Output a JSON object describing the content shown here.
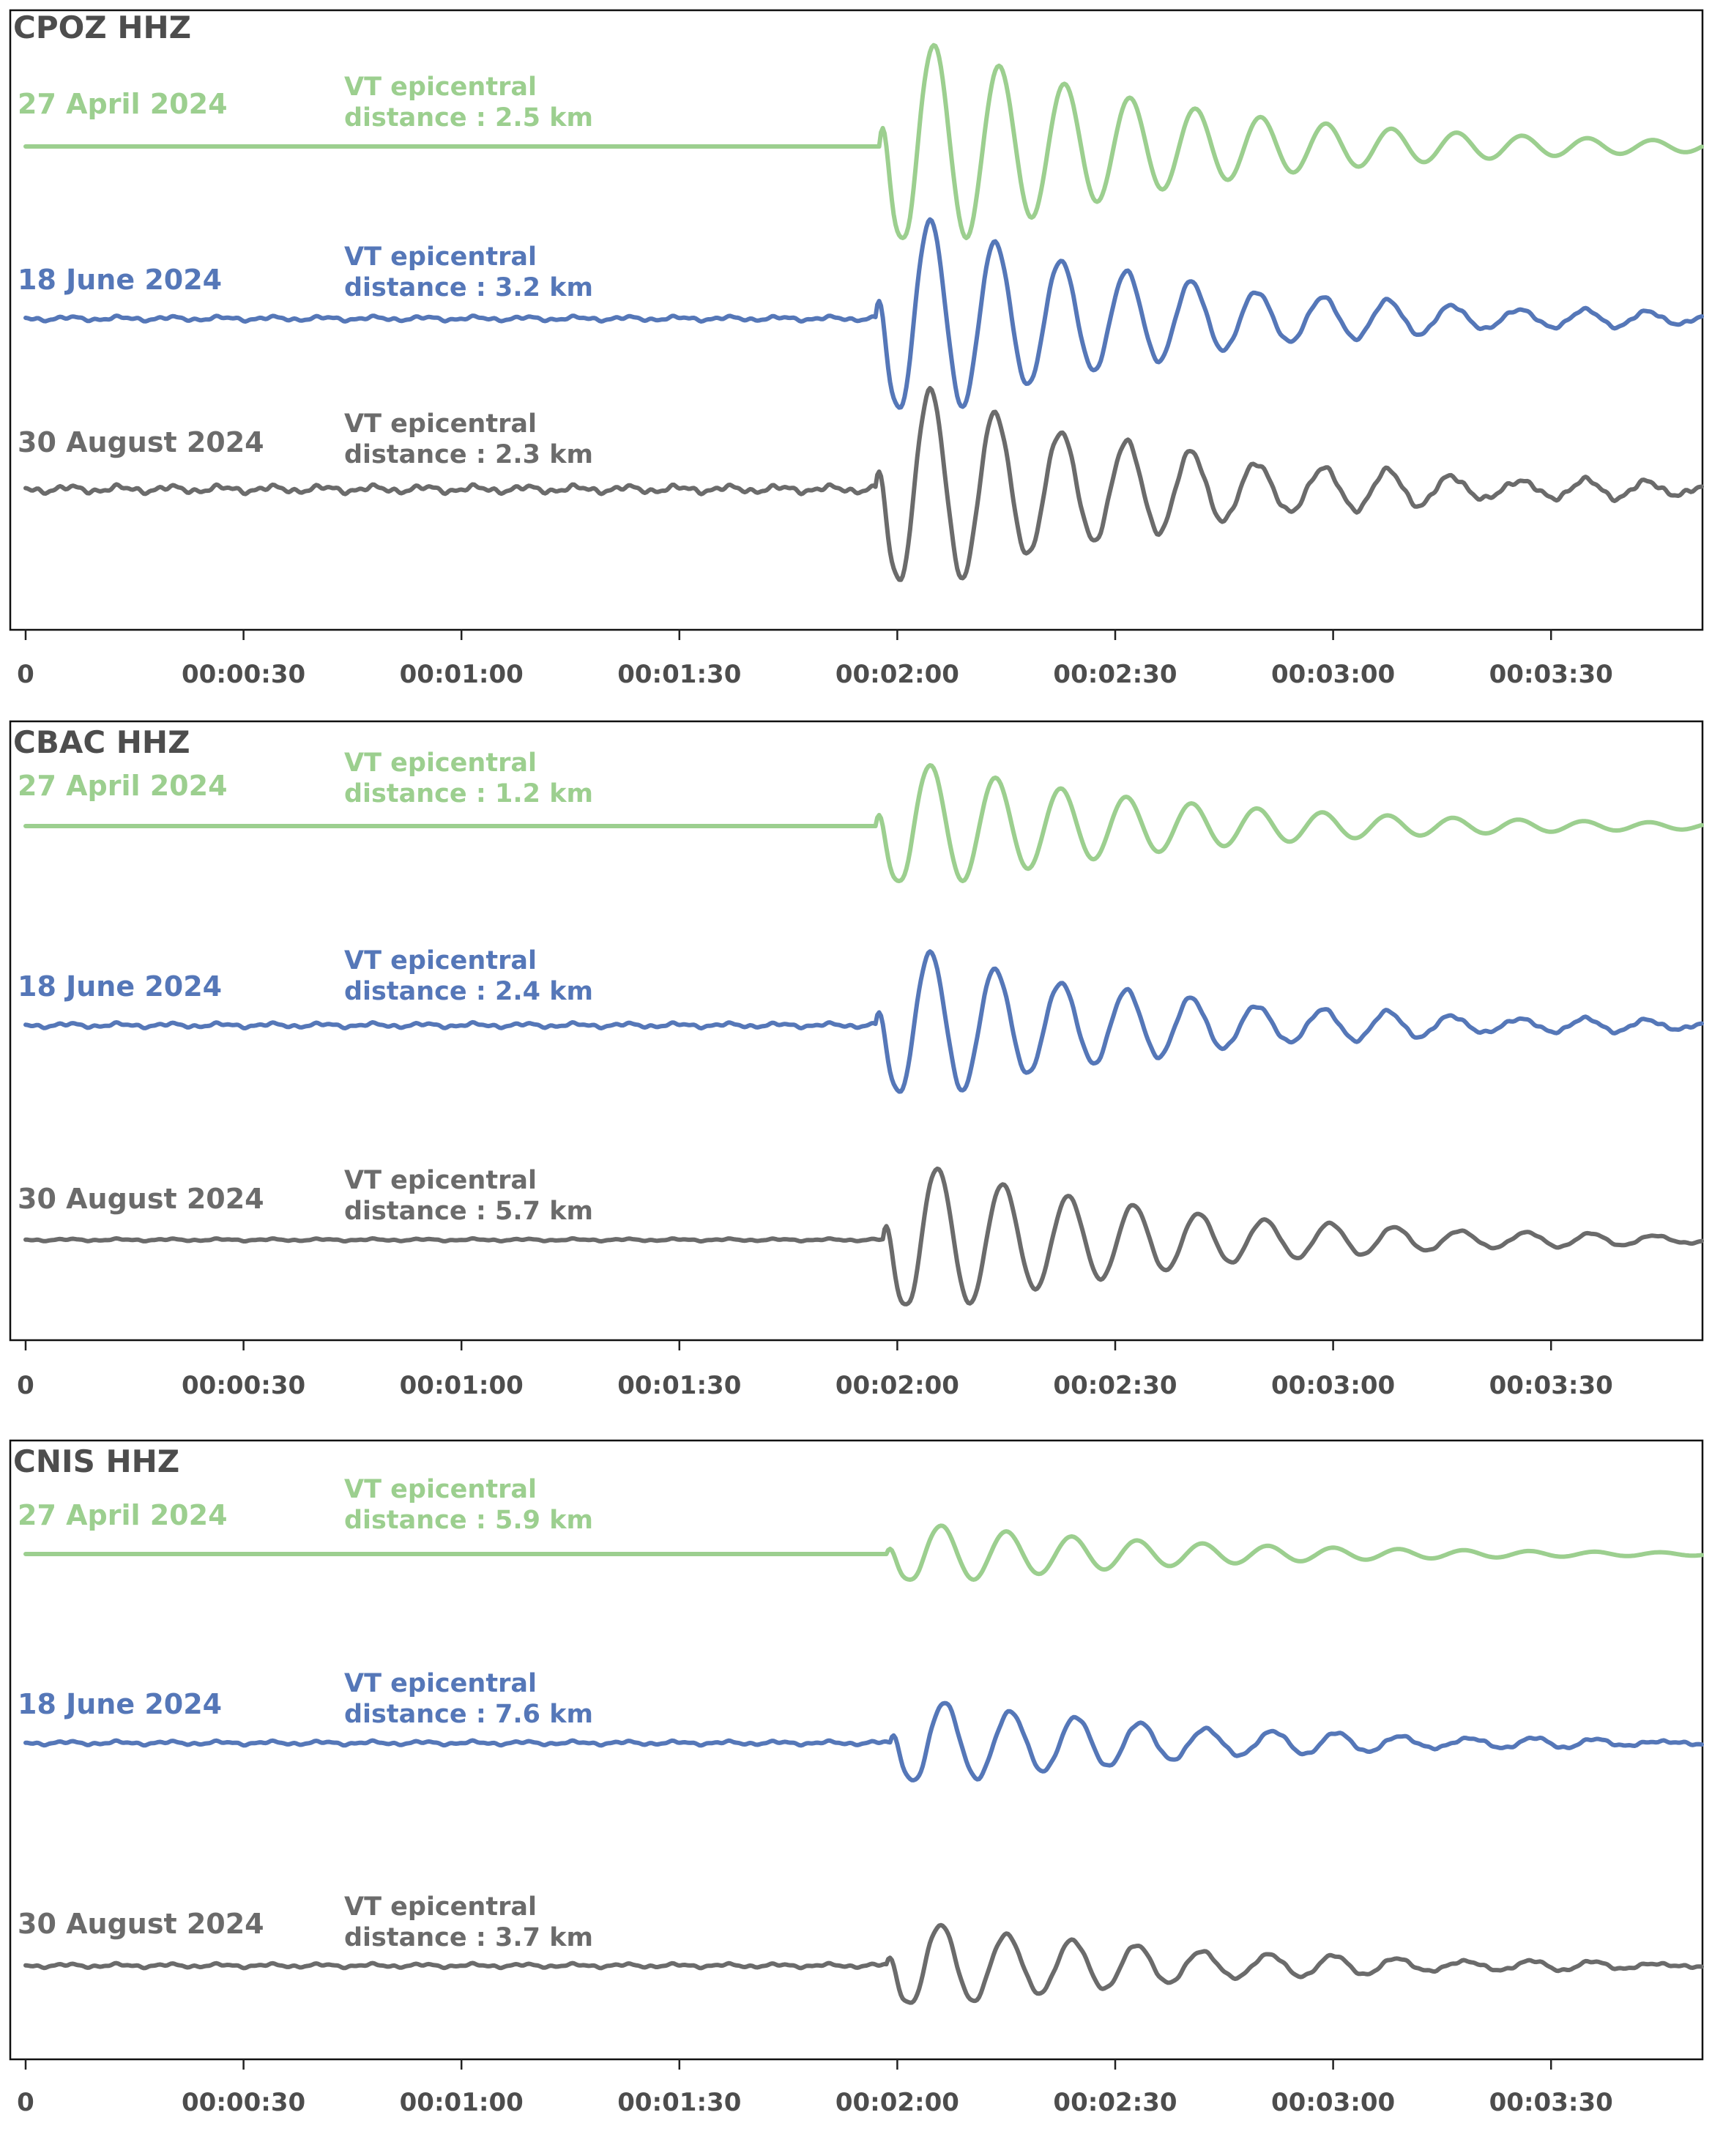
{
  "colors": {
    "27 April 2024": "#9ccf8f",
    "18 June 2024": "#5577b8",
    "30 August 2024": "#6b6b6b"
  },
  "chart_data": [
    {
      "type": "line",
      "title": "CPOZ  HHZ",
      "x_unit": "seconds",
      "xlim": [
        0,
        232
      ],
      "x_ticks": [
        "0",
        "00:00:30",
        "00:01:00",
        "00:01:30",
        "00:02:00",
        "00:02:30",
        "00:03:00",
        "00:03:30"
      ],
      "series": [
        {
          "name": "27 April 2024",
          "vt_line1": "VT epicentral",
          "vt_line2": "distance : 2.5 km",
          "onset": 117.5,
          "amplitude": 1.0,
          "noise": 0.0
        },
        {
          "name": "18 June 2024",
          "vt_line1": "VT epicentral",
          "vt_line2": "distance : 3.2 km",
          "onset": 117.0,
          "amplitude": 0.95,
          "noise": 0.012
        },
        {
          "name": "30 August 2024",
          "vt_line1": "VT epicentral",
          "vt_line2": "distance : 2.3 km",
          "onset": 117.0,
          "amplitude": 0.95,
          "noise": 0.02
        }
      ]
    },
    {
      "type": "line",
      "title": "CBAC  HHZ",
      "x_unit": "seconds",
      "xlim": [
        0,
        232
      ],
      "x_ticks": [
        "0",
        "00:00:30",
        "00:01:00",
        "00:01:30",
        "00:02:00",
        "00:02:30",
        "00:03:00",
        "00:03:30"
      ],
      "series": [
        {
          "name": "27 April 2024",
          "vt_line1": "VT epicentral",
          "vt_line2": "distance : 1.2 km",
          "onset": 117.0,
          "amplitude": 0.6,
          "noise": 0.0
        },
        {
          "name": "18 June 2024",
          "vt_line1": "VT epicentral",
          "vt_line2": "distance : 2.4 km",
          "onset": 117.0,
          "amplitude": 0.7,
          "noise": 0.012
        },
        {
          "name": "30 August 2024",
          "vt_line1": "VT epicentral",
          "vt_line2": "distance : 5.7 km",
          "onset": 118.0,
          "amplitude": 0.7,
          "noise": 0.006
        }
      ]
    },
    {
      "type": "line",
      "title": "CNIS  HHZ",
      "x_unit": "seconds",
      "xlim": [
        0,
        232
      ],
      "x_ticks": [
        "0",
        "00:00:30",
        "00:01:00",
        "00:01:30",
        "00:02:00",
        "00:02:30",
        "00:03:00",
        "00:03:30"
      ],
      "series": [
        {
          "name": "27 April 2024",
          "vt_line1": "VT epicentral",
          "vt_line2": "distance : 5.9 km",
          "onset": 118.5,
          "amplitude": 0.28,
          "noise": 0.0
        },
        {
          "name": "18 June 2024",
          "vt_line1": "VT epicentral",
          "vt_line2": "distance : 7.6 km",
          "onset": 119.0,
          "amplitude": 0.4,
          "noise": 0.01
        },
        {
          "name": "30 August 2024",
          "vt_line1": "VT epicentral",
          "vt_line2": "distance : 3.7 km",
          "onset": 118.5,
          "amplitude": 0.4,
          "noise": 0.01
        }
      ]
    }
  ]
}
